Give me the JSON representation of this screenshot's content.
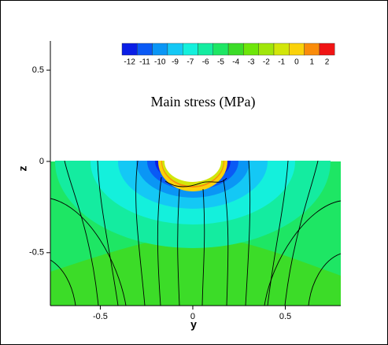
{
  "chart_data": {
    "type": "contour",
    "title": "Main stress (MPa)",
    "xlabel": "y",
    "ylabel": "z",
    "xlim": [
      -0.77,
      0.8
    ],
    "ylim": [
      -0.79,
      0.66
    ],
    "xticks": [
      -0.5,
      0,
      0.5
    ],
    "yticks": [
      -0.5,
      0,
      0.5
    ],
    "levels": [
      -12,
      -11,
      -10,
      -9,
      -7,
      -6,
      -5,
      -4,
      -3,
      -2,
      -1,
      0,
      1,
      2
    ],
    "colors": [
      "#0a1ee6",
      "#0a5af5",
      "#0a96f5",
      "#14c8f5",
      "#14f0dc",
      "#14eca0",
      "#1ee664",
      "#3cdc28",
      "#6ee60a",
      "#a0e60a",
      "#d2e60a",
      "#fad20a",
      "#fa8c0a",
      "#f01414"
    ]
  }
}
